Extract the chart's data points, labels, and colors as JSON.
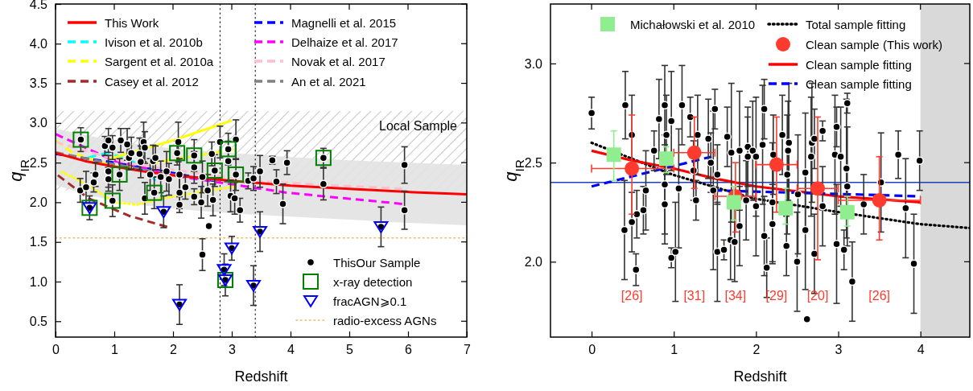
{
  "chart_data": [
    {
      "type": "scatter",
      "xlabel": "Redshift",
      "ylabel": "q$_{IR}$",
      "xlim": [
        0,
        7
      ],
      "ylim": [
        0.3,
        4.5
      ],
      "xticks": [
        0,
        1,
        2,
        3,
        4,
        5,
        6,
        7
      ],
      "yticks": [
        {
          "value": 0.5,
          "label": "0.5"
        },
        {
          "value": 1,
          "label": "1.0"
        },
        {
          "value": 1.5,
          "label": "1.5"
        },
        {
          "value": 2,
          "label": "2.0"
        },
        {
          "value": 2.5,
          "label": "2.5"
        },
        {
          "value": 3,
          "label": "3.0"
        },
        {
          "value": 3.5,
          "label": "3.5"
        },
        {
          "value": 4,
          "label": "4.0"
        },
        {
          "value": 4.5,
          "label": "4.5"
        }
      ],
      "legend": "left",
      "bands": [
        {
          "axis": "y",
          "from": 2.15,
          "to": 3.15,
          "label": "Local Sample",
          "color": "#a0a0a0"
        }
      ],
      "ref_lines": [
        {
          "axis": "x",
          "value": 2.8,
          "color": "#000000",
          "line_style": "dotted"
        },
        {
          "axis": "x",
          "value": 3.4,
          "color": "#000000",
          "line_style": "dotted"
        },
        {
          "axis": "y",
          "value": 1.55,
          "label": "radio-excess AGNs",
          "color": "#f0b860",
          "line_style": "dotted"
        }
      ],
      "series": [
        {
          "name": "This Work",
          "type": "line",
          "color": "#ff0000",
          "line_style": "solid",
          "x": [
            0,
            0.5,
            1,
            1.5,
            2,
            3,
            4,
            5,
            6,
            7
          ],
          "values": [
            2.62,
            2.52,
            2.45,
            2.39,
            2.34,
            2.27,
            2.21,
            2.17,
            2.13,
            2.1
          ],
          "lower": [
            2.22,
            2.1,
            2.02,
            1.96,
            1.92,
            1.86,
            1.82,
            1.78,
            1.74,
            1.71
          ],
          "upper": [
            2.93,
            2.85,
            2.78,
            2.72,
            2.68,
            2.62,
            2.57,
            2.53,
            2.5,
            2.47
          ]
        },
        {
          "name": "Ivison et al. 2010b",
          "type": "line",
          "color": "#00ffff",
          "line_style": "dashed",
          "x": [
            0.55,
            0.74,
            0.86,
            1.25,
            1.62,
            1.7
          ],
          "values": [
            2.56,
            2.6,
            2.62,
            2.55,
            2.35,
            2.27
          ]
        },
        {
          "name": "Sargent et al. 2010a",
          "type": "line",
          "color": "#ffff00",
          "line_style": "dashed",
          "x": [
            0,
            0.3,
            1,
            1.5,
            1.84,
            2.5,
            3.03
          ],
          "values": [
            2.78,
            2.62,
            2.45,
            2.45,
            2.52,
            2.6,
            2.67
          ]
        },
        {
          "name": "Casey et al. 2012",
          "type": "line",
          "color": "#a52a2a",
          "line_style": "dashed",
          "x": [
            0.04,
            0.56,
            1.25,
            1.9
          ],
          "values": [
            2.34,
            2.05,
            1.83,
            1.69
          ]
        },
        {
          "name": "Magnelli et al. 2015",
          "type": "line",
          "color": "#0000ff",
          "line_style": "dashed",
          "x": [
            0,
            1,
            2,
            2.7
          ],
          "values": [
            2.61,
            2.5,
            2.37,
            2.27
          ]
        },
        {
          "name": "Delhaize et al. 2017",
          "type": "line",
          "color": "#ff00ff",
          "line_style": "dashed",
          "x": [
            0,
            1.01,
            2.16,
            3.95,
            5.9
          ],
          "values": [
            2.86,
            2.52,
            2.32,
            2.12,
            1.98
          ]
        },
        {
          "name": "Novak et al. 2017",
          "type": "line",
          "color": "#ffc0cb",
          "line_style": "dashed",
          "x": [
            0,
            1.25,
            3.3,
            5.9
          ],
          "values": [
            2.76,
            2.49,
            2.27,
            2.17
          ]
        },
        {
          "name": "An et al. 2021",
          "type": "line",
          "color": "#808080",
          "line_style": "dashed",
          "x": [
            0,
            1,
            2,
            3
          ],
          "values": [
            2.63,
            2.48,
            2.35,
            2.25
          ]
        },
        {
          "type": "line",
          "color": "#ffff00",
          "line_style": "solid",
          "x": [
            0.93,
            2,
            3
          ],
          "values": [
            2.55,
            2.78,
            3.03
          ]
        },
        {
          "type": "line",
          "color": "#ffff00",
          "line_style": "dotted",
          "x": [
            0.1,
            0.29,
            0.6,
            1.01,
            1.38,
            1.84,
            2.62,
            3.07
          ],
          "values": [
            2.38,
            2.32,
            2.19,
            2,
            1.97,
            2.05,
            2.15,
            2.2
          ]
        },
        {
          "name": "ThisOur Sample",
          "marker": "circle",
          "color": "#000000",
          "x": [
            0.43,
            0.42,
            0.52,
            0.58,
            0.65,
            0.68,
            0.84,
            0.9,
            0.97,
            0.9,
            0.9,
            0.97,
            1.09,
            1.11,
            1.22,
            1.25,
            1.29,
            1.43,
            1.5,
            1.52,
            1.45,
            1.52,
            1.61,
            1.66,
            1.7,
            1.68,
            1.79,
            1.84,
            1.89,
            1.93,
            2.07,
            2.09,
            2.11,
            2.11,
            2.11,
            2.11,
            2.21,
            2.36,
            2.36,
            2.36,
            2.48,
            2.5,
            2.5,
            2.59,
            2.61,
            2.66,
            2.68,
            2.71,
            2.8,
            2.87,
            2.89,
            2.94,
            2.94,
            2.98,
            3,
            3.05,
            3.07,
            3.07,
            3.14,
            3.28,
            3.37,
            3.37,
            3.48,
            3.48,
            3.69,
            3.76,
            3.87,
            3.94,
            4.56,
            4.56,
            5.54,
            5.94,
            5.94
          ],
          "values": [
            2.79,
            2.15,
            2.19,
            1.93,
            2.25,
            2.35,
            2.71,
            2.78,
            2.69,
            2.39,
            2.29,
            2.02,
            2.35,
            2.78,
            2.73,
            2.56,
            2.62,
            2.61,
            2.76,
            2.69,
            2.51,
            2.05,
            2.35,
            2.52,
            2.56,
            2.12,
            2.32,
            1.88,
            2.39,
            2.29,
            2.62,
            2.76,
            2.35,
            2.12,
            1.97,
            0.71,
            2.19,
            2.59,
            2.44,
            2.07,
            2,
            2.32,
            1.34,
            2.15,
            1.7,
            2.61,
            2.03,
            2.4,
            2.76,
            1.15,
            1.02,
            2.67,
            2.52,
            2.08,
            1.42,
            2.05,
            2.79,
            2.35,
            1.9,
            2.27,
            2.3,
            0.95,
            2.39,
            1.63,
            2.53,
            2.26,
            1.98,
            2.5,
            2.56,
            2.23,
            1.69,
            2.47,
            1.9
          ],
          "errors": [
            0.15,
            0.15,
            0.2,
            0.15,
            0.12,
            0.15,
            0.12,
            0.15,
            0.15,
            0.2,
            0.15,
            0.2,
            0.2,
            0.15,
            0.2,
            0.15,
            0.2,
            0.2,
            0.25,
            0.2,
            0.2,
            0.2,
            0.2,
            0.2,
            0.15,
            0.2,
            0.2,
            0.2,
            0.25,
            0.2,
            0.15,
            0.25,
            0.2,
            0.2,
            0.1,
            0.25,
            0.15,
            0.2,
            0.2,
            0.1,
            0.2,
            0.2,
            0.2,
            0.2,
            null,
            0.15,
            0.2,
            0.2,
            0.2,
            0.2,
            0.2,
            0.2,
            0.25,
            0.2,
            0.15,
            0.2,
            0.25,
            0.2,
            0.15,
            0.1,
            0.15,
            0.25,
            0.2,
            0.25,
            0.05,
            0.15,
            0.25,
            0.15,
            0.12,
            0.2,
            0.25,
            0.23,
            0.24
          ]
        },
        {
          "name": "x-ray detection",
          "marker": "square",
          "color": "#008000",
          "x": [
            0.43,
            0.58,
            0.97,
            1.09,
            1.68,
            2.07,
            2.36,
            2.71,
            2.94,
            3.07,
            2.89,
            4.56
          ],
          "values": [
            2.79,
            1.93,
            2.02,
            2.35,
            2.12,
            2.62,
            2.59,
            2.4,
            2.67,
            2.35,
            1.02,
            2.56
          ]
        },
        {
          "name": "fracAGN⩾0.1",
          "marker": "triangle",
          "color": "#0000ff",
          "x": [
            0.58,
            1.84,
            2.11,
            2.87,
            2.89,
            3,
            3.37,
            3.48,
            5.54
          ],
          "values": [
            1.93,
            1.88,
            0.71,
            1.15,
            1.02,
            1.42,
            0.95,
            1.63,
            1.69
          ]
        }
      ]
    },
    {
      "type": "scatter",
      "xlabel": "Redshift",
      "ylabel": "q$_{IR}$",
      "xlim": [
        -0.5,
        4.6
      ],
      "ylim": [
        1.62,
        3.3
      ],
      "xticks": [
        0,
        1,
        2,
        3,
        4
      ],
      "yticks": [
        {
          "value": 2,
          "label": "2.0"
        },
        {
          "value": 2.5,
          "label": "2.5"
        },
        {
          "value": 3,
          "label": "3.0"
        }
      ],
      "legend": "top",
      "bands": [
        {
          "axis": "x",
          "from": 4,
          "to": 4.6,
          "color": "#d9d9d9"
        }
      ],
      "ref_lines": [
        {
          "axis": "y",
          "value": 2.4,
          "color": "#1f3fbf",
          "line_style": "solid"
        }
      ],
      "annotations": [
        "[26]",
        "[31]",
        "[34]",
        "[29]",
        "[20]",
        "[26]"
      ],
      "series": [
        {
          "name": "Michałowski et al. 2010",
          "marker": "square",
          "color": "#90ee90",
          "x": [
            0.27,
            0.91,
            1.73,
            2.36,
            3.11
          ],
          "values": [
            2.54,
            2.52,
            2.3,
            2.27,
            2.25
          ],
          "errors": [
            [
              2.41,
              2.66
            ],
            [
              2.45,
              2.58
            ],
            [
              2.21,
              2.38
            ],
            [
              2.19,
              2.37
            ],
            [
              2.18,
              2.33
            ]
          ]
        },
        {
          "name": "Total sample fitting",
          "type": "line",
          "color": "#000000",
          "line_style": "dotted",
          "x": [
            0,
            0.98,
            1.96,
            3.01,
            3.99,
            4.6
          ],
          "values": [
            2.6,
            2.44,
            2.32,
            2.25,
            2.19,
            2.17
          ]
        },
        {
          "name": "Clean sample (This work)",
          "marker": "circle",
          "color": "#ff3b2f",
          "x": [
            0.49,
            1.25,
            1.75,
            2.25,
            2.75,
            3.5
          ],
          "values": [
            2.47,
            2.55,
            2.33,
            2.49,
            2.37,
            2.31
          ],
          "errors": [
            [
              2.24,
              2.74
            ],
            [
              2.37,
              2.73
            ],
            [
              2.15,
              2.5
            ],
            [
              2.25,
              2.73
            ],
            [
              2.01,
              2.73
            ],
            [
              2.11,
              2.53
            ]
          ],
          "xerrors": [
            [
              0,
              1
            ],
            [
              1,
              1.5
            ],
            [
              1.5,
              2
            ],
            [
              2,
              2.5
            ],
            [
              2.5,
              3
            ],
            [
              3,
              4
            ]
          ]
        },
        {
          "name": "Clean sample fitting",
          "type": "line",
          "color": "#ff0000",
          "line_style": "solid",
          "x": [
            0,
            0.5,
            1,
            1.5,
            2,
            3,
            4
          ],
          "values": [
            2.56,
            2.51,
            2.47,
            2.42,
            2.38,
            2.33,
            2.3
          ]
        },
        {
          "name": "Clean sample fitting",
          "type": "line",
          "color": "#0000ff",
          "line_style": "dashed",
          "x": [
            0,
            1.46,
            1.475,
            1.49,
            4
          ],
          "values": [
            2.38,
            2.53,
            null,
            2.36,
            2.33
          ]
        },
        {
          "marker": "circle",
          "color": "#000000",
          "x": [
            0,
            0.4,
            0.41,
            0.49,
            0.49,
            0.54,
            0.55,
            0.63,
            0.66,
            0.76,
            0.82,
            0.89,
            0.91,
            0.89,
            0.89,
            0.97,
            0.97,
            1.02,
            1.06,
            1.1,
            1.2,
            1.24,
            1.29,
            1.27,
            1.42,
            1.45,
            1.5,
            1.48,
            1.53,
            1.53,
            1.61,
            1.65,
            1.7,
            1.69,
            1.74,
            1.8,
            1.8,
            1.88,
            1.9,
            1.9,
            1.96,
            2,
            2,
            2.08,
            2.1,
            2.1,
            2.13,
            2.21,
            2.2,
            2.2,
            2.32,
            2.38,
            2.4,
            2.39,
            2.37,
            2.5,
            2.51,
            2.6,
            2.6,
            2.62,
            2.67,
            2.68,
            2.71,
            2.71,
            2.81,
            2.81,
            2.96,
            2.98,
            2.98,
            3.03,
            3.07,
            3.1,
            3.11,
            3.11,
            3.17,
            3.31,
            3.52,
            3.73,
            3.82,
            3.92,
            3.99
          ],
          "values": [
            2.75,
            2.16,
            2.79,
            2.64,
            2.2,
            1.96,
            2.24,
            2.26,
            2.36,
            2.56,
            2.72,
            2.79,
            2.64,
            2.39,
            2.29,
            2.71,
            2.02,
            2.05,
            2.37,
            2.79,
            2.73,
            2.46,
            2.64,
            2.31,
            2.62,
            2.5,
            2.77,
            2.36,
            2.44,
            2.05,
            2.06,
            2.63,
            2.55,
            2.11,
            2.1,
            2.56,
            2.18,
            2.31,
            2.58,
            2.53,
            2.56,
            2.53,
            2.28,
            2.59,
            2.77,
            2.13,
            1.97,
            2.54,
            2.3,
            2.19,
            2.64,
            2.44,
            2.6,
            2.56,
            2.08,
            2,
            2.34,
            2.45,
            2.16,
            1.71,
            2.53,
            2.6,
            2.04,
            2.62,
            2.66,
            2.28,
            2.54,
            2.68,
            2.09,
            2.53,
            2.06,
            2.47,
            2.38,
            2.8,
            1.9,
            2.29,
            2.4,
            2.54,
            2.27,
            1.99,
            2.51
          ],
          "errors": [
            0.08,
            0.25,
            0.17,
            0.2,
            0.15,
            0.08,
            0.12,
            0.12,
            0.2,
            0.1,
            0.2,
            0.2,
            0.2,
            0.25,
            0.2,
            0.25,
            0.05,
            0.25,
            0.3,
            0.2,
            0.1,
            0.15,
            0.2,
            0.1,
            0.2,
            0.15,
            0.1,
            0.4,
            0.15,
            0.25,
            0.05,
            0.15,
            0.35,
            0.2,
            0.2,
            0.3,
            0.2,
            0.2,
            0.2,
            0.2,
            0.25,
            0.3,
            0.25,
            0.3,
            0.15,
            0.2,
            0.15,
            0.2,
            0.3,
            0.2,
            0.2,
            0.3,
            0.3,
            0.25,
            0.15,
            0.25,
            0.3,
            0.3,
            0.3,
            null,
            0.3,
            0.3,
            0.2,
            0.15,
            0.05,
            0.2,
            0.3,
            0.1,
            0.3,
            0.25,
            0.1,
            0.35,
            0.3,
            0.05,
            0.2,
            0.15,
            0.25,
            0.12,
            0.25,
            0.25,
            0.15
          ]
        }
      ]
    }
  ]
}
